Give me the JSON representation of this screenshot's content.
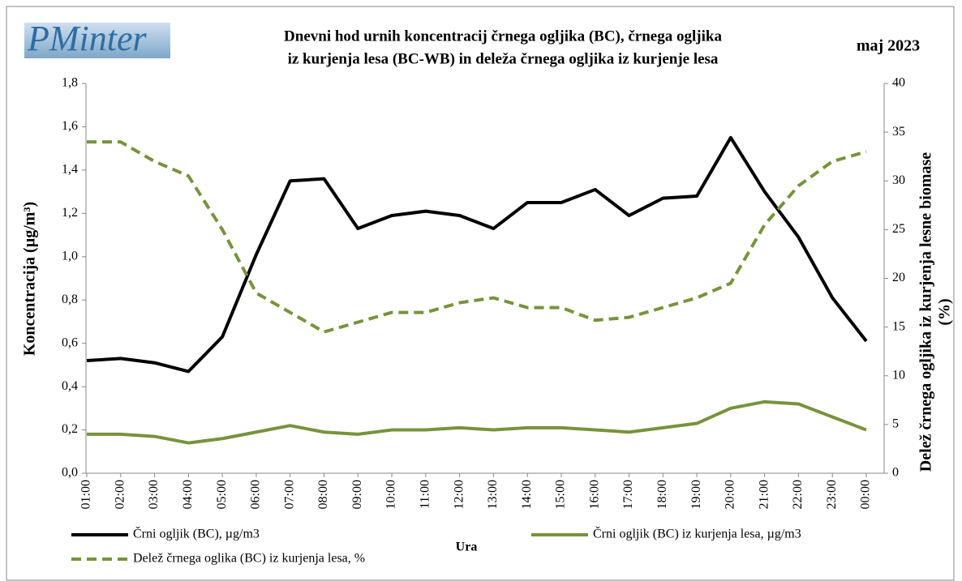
{
  "chart_data": {
    "type": "line",
    "logo": "PMinter",
    "title_lines": [
      "Dnevni hod urnih  koncentracij črnega ogljika (BC), črnega ogljika",
      "iz kurjenja lesa (BC-WB) in deleža črnega ogljika iz kurjenje lesa"
    ],
    "subtitle": "maj 2023",
    "y_label": "Koncentracija  (µg/m³)",
    "y2_label_lines": [
      "Delež črnega ogljika iz kurjenja lesne biomase",
      "(%)"
    ],
    "x_label": "Ura",
    "categories": [
      "01:00",
      "02:00",
      "03:00",
      "04:00",
      "05:00",
      "06:00",
      "07:00",
      "08:00",
      "09:00",
      "10:00",
      "11:00",
      "12:00",
      "13:00",
      "14:00",
      "15:00",
      "16:00",
      "17:00",
      "18:00",
      "19:00",
      "20:00",
      "21:00",
      "22:00",
      "23:00",
      "00:00"
    ],
    "ylim": [
      0,
      1.8
    ],
    "yticks": [
      {
        "value": 0,
        "label": "0,0"
      },
      {
        "value": 0.2,
        "label": "0,2"
      },
      {
        "value": 0.4,
        "label": "0,4"
      },
      {
        "value": 0.6,
        "label": "0,6"
      },
      {
        "value": 0.8,
        "label": "0,8"
      },
      {
        "value": 1.0,
        "label": "1,0"
      },
      {
        "value": 1.2,
        "label": "1,2"
      },
      {
        "value": 1.4,
        "label": "1,4"
      },
      {
        "value": 1.6,
        "label": "1,6"
      },
      {
        "value": 1.8,
        "label": "1,8"
      }
    ],
    "y2lim": [
      0,
      40
    ],
    "y2ticks": [
      0,
      5,
      10,
      15,
      20,
      25,
      30,
      35,
      40
    ],
    "series": [
      {
        "name": "Črni ogljik (BC), µg/m3",
        "color": "#000000",
        "dash": false,
        "axis": "y",
        "values": [
          0.52,
          0.53,
          0.51,
          0.47,
          0.63,
          1.01,
          1.35,
          1.36,
          1.13,
          1.19,
          1.21,
          1.19,
          1.13,
          1.25,
          1.25,
          1.31,
          1.19,
          1.27,
          1.28,
          1.55,
          1.3,
          1.09,
          0.81,
          0.61
        ]
      },
      {
        "name": "Črni ogljik (BC) iz kurjenja lesa, µg/m3",
        "color": "#77933c",
        "dash": false,
        "axis": "y",
        "values": [
          0.18,
          0.18,
          0.17,
          0.14,
          0.16,
          0.19,
          0.22,
          0.19,
          0.18,
          0.2,
          0.2,
          0.21,
          0.2,
          0.21,
          0.21,
          0.2,
          0.19,
          0.21,
          0.23,
          0.3,
          0.33,
          0.32,
          0.26,
          0.2
        ]
      },
      {
        "name": "Delež črnega oglika (BC) iz kurjenja lesa, %",
        "color": "#77933c",
        "dash": true,
        "axis": "y2",
        "values": [
          34,
          34,
          32,
          30.5,
          25,
          18.5,
          16.5,
          14.5,
          15.5,
          16.5,
          16.5,
          17.5,
          18,
          17,
          17,
          15.7,
          16,
          17,
          18,
          19.5,
          25.5,
          29.5,
          32,
          33
        ]
      }
    ]
  }
}
